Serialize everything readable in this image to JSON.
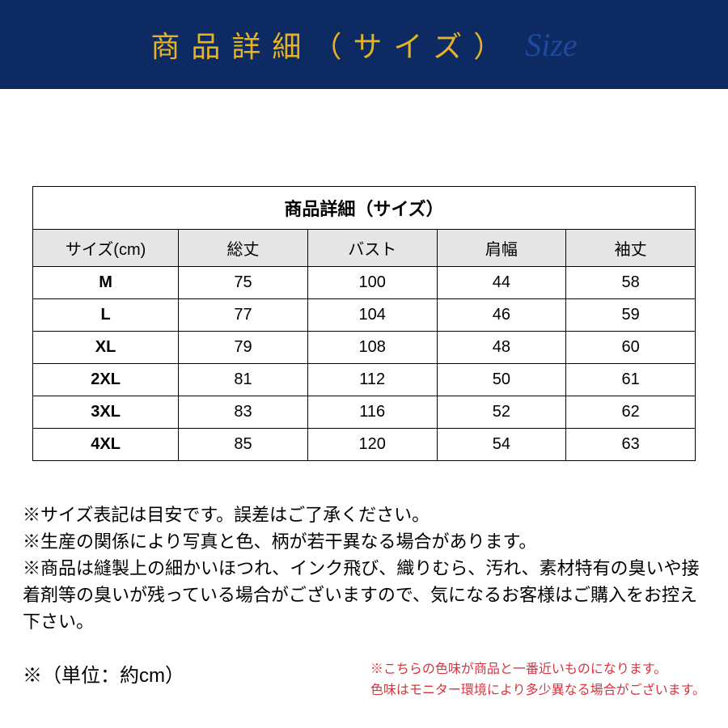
{
  "banner": {
    "bg_color": "#0e2a63",
    "text_jp": "商品詳細（サイズ）",
    "text_jp_color": "#e6b422",
    "text_en": "Size",
    "text_en_color": "#1e4a9e"
  },
  "table": {
    "caption": "商品詳細（サイズ）",
    "header_bg": "#e6e6e6",
    "columns": [
      "サイズ(cm)",
      "総丈",
      "バスト",
      "肩幅",
      "袖丈"
    ],
    "rows": [
      {
        "size": "M",
        "vals": [
          "75",
          "100",
          "44",
          "58"
        ]
      },
      {
        "size": "L",
        "vals": [
          "77",
          "104",
          "46",
          "59"
        ]
      },
      {
        "size": "XL",
        "vals": [
          "79",
          "108",
          "48",
          "60"
        ]
      },
      {
        "size": "2XL",
        "vals": [
          "81",
          "112",
          "50",
          "61"
        ]
      },
      {
        "size": "3XL",
        "vals": [
          "83",
          "116",
          "52",
          "62"
        ]
      },
      {
        "size": "4XL",
        "vals": [
          "85",
          "120",
          "54",
          "63"
        ]
      }
    ]
  },
  "notes": {
    "lines": [
      "※サイズ表記は目安です。誤差はご了承ください。",
      "※生産の関係により写真と色、柄が若干異なる場合があります。",
      "※商品は縫製上の細かいほつれ、インク飛び、織りむら、汚れ、素材特有の臭いや接着剤等の臭いが残っている場合がございますので、気になるお客様はご購入をお控え下さい。"
    ]
  },
  "footer": {
    "unit_label": "※（単位：約cm）",
    "color_note_lines": [
      "※こちらの色味が商品と一番近いものになります。",
      "色味はモニター環境により多少異なる場合がございます。"
    ],
    "color_note_color": "#d9333f"
  }
}
